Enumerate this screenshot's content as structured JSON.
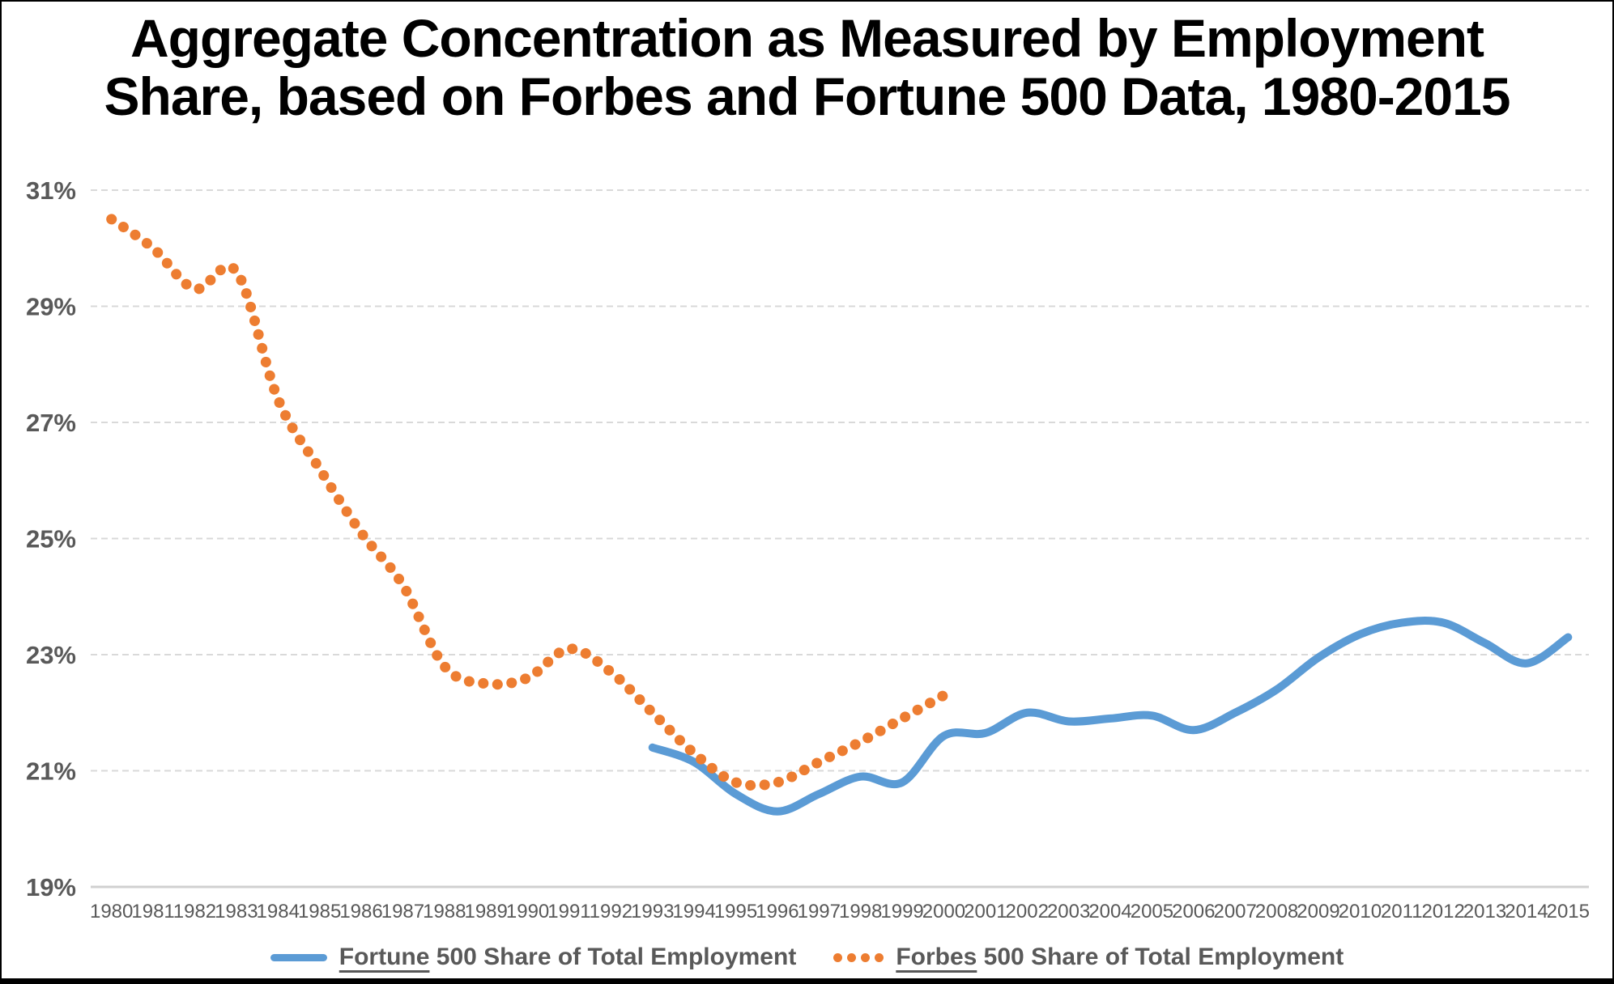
{
  "title": {
    "line1": "Aggregate Concentration as Measured by Employment",
    "line2": "Share, based on Forbes and Fortune 500 Data, 1980-2015"
  },
  "y_axis": {
    "tick_labels": [
      "31%",
      "29%",
      "27%",
      "25%",
      "23%",
      "21%",
      "19%"
    ],
    "tick_values": [
      31,
      29,
      27,
      25,
      23,
      21,
      19
    ]
  },
  "legend": {
    "items": [
      {
        "underlined": "Fortune",
        "rest": " 500 Share of Total Employment",
        "color": "#5B9BD5",
        "marker": "line"
      },
      {
        "underlined": "Forbes",
        "rest": " 500 Share of Total Employment",
        "color": "#ED7D31",
        "marker": "dots"
      }
    ]
  },
  "colors": {
    "fortune_blue": "#5B9BD5",
    "forbes_orange": "#ED7D31",
    "gridline": "#D9D9D9",
    "axis_line": "#D0D0D0",
    "axis_label": "#595959",
    "title_text": "#000000"
  },
  "chart_data": {
    "type": "line",
    "title": "Aggregate Concentration as Measured by Employment Share, based on Forbes and Fortune 500 Data, 1980-2015",
    "xlabel": "",
    "ylabel": "",
    "x": [
      1980,
      1981,
      1982,
      1983,
      1984,
      1985,
      1986,
      1987,
      1988,
      1989,
      1990,
      1991,
      1992,
      1993,
      1994,
      1995,
      1996,
      1997,
      1998,
      1999,
      2000,
      2001,
      2002,
      2003,
      2004,
      2005,
      2006,
      2007,
      2008,
      2009,
      2010,
      2011,
      2012,
      2013,
      2014,
      2015
    ],
    "ylim": [
      19,
      31
    ],
    "y_tick_step": 2,
    "y_tick_format": "percent",
    "grid": true,
    "legend_position": "bottom",
    "series": [
      {
        "name": "Fortune 500 Share of Total Employment",
        "color": "#5B9BD5",
        "line_style": "solid",
        "x": [
          1993,
          1994,
          1995,
          1996,
          1997,
          1998,
          1999,
          2000,
          2001,
          2002,
          2003,
          2004,
          2005,
          2006,
          2007,
          2008,
          2009,
          2010,
          2011,
          2012,
          2013,
          2014,
          2015
        ],
        "values": [
          21.4,
          21.15,
          20.6,
          20.3,
          20.6,
          20.9,
          20.8,
          21.6,
          21.65,
          22.0,
          21.85,
          21.9,
          21.95,
          21.7,
          22.0,
          22.4,
          22.95,
          23.35,
          23.55,
          23.55,
          23.2,
          22.85,
          23.3
        ]
      },
      {
        "name": "Forbes 500 Share of Total Employment",
        "color": "#ED7D31",
        "line_style": "dotted",
        "x": [
          1980,
          1981,
          1982,
          1983,
          1984,
          1985,
          1986,
          1987,
          1988,
          1989,
          1990,
          1991,
          1992,
          1993,
          1994,
          1995,
          1996,
          1997,
          1998,
          1999,
          2000
        ],
        "values": [
          30.5,
          30.0,
          29.3,
          29.6,
          27.4,
          26.2,
          25.1,
          24.2,
          22.8,
          22.5,
          22.6,
          23.1,
          22.7,
          22.0,
          21.3,
          20.8,
          20.8,
          21.15,
          21.5,
          21.9,
          22.3
        ]
      }
    ]
  }
}
